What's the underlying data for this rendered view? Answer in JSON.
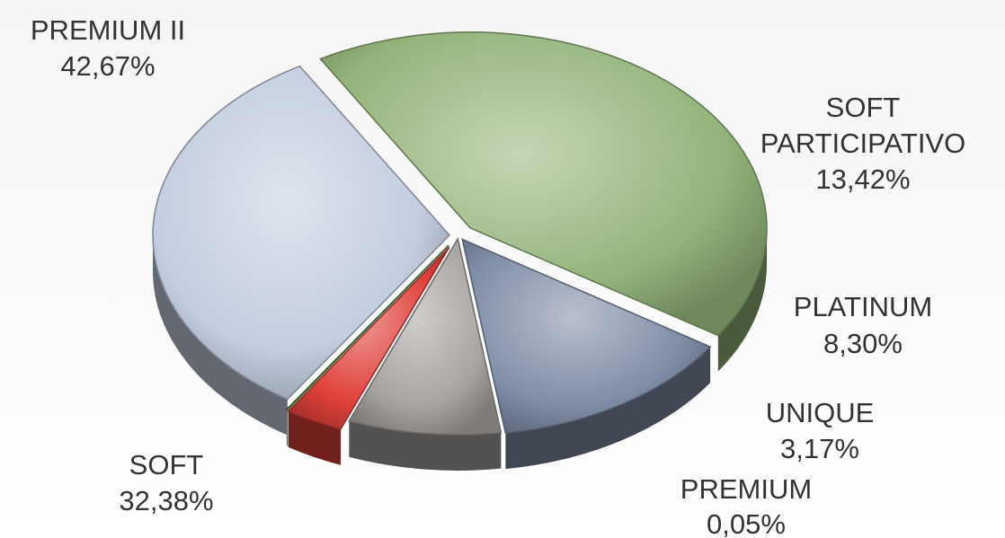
{
  "chart_data": {
    "type": "pie",
    "title": "",
    "slices": [
      {
        "name": "PREMIUM II",
        "value": 42.67,
        "value_label": "42,67%",
        "color": "#93b47a"
      },
      {
        "name": "SOFT PARTICIPATIVO",
        "value": 13.42,
        "value_label": "13,42%",
        "color": "#7f8da6"
      },
      {
        "name": "PLATINUM",
        "value": 8.3,
        "value_label": "8,30%",
        "color": "#a8a4a1"
      },
      {
        "name": "UNIQUE",
        "value": 3.17,
        "value_label": "3,17%",
        "color": "#e0413a"
      },
      {
        "name": "PREMIUM",
        "value": 0.05,
        "value_label": "0,05%",
        "color": "#4f8a3a"
      },
      {
        "name": "SOFT",
        "value": 32.38,
        "value_label": "32,38%",
        "color": "#c3cde0"
      }
    ],
    "style": "3d-exploded",
    "legend": "none",
    "labels": "outside"
  }
}
